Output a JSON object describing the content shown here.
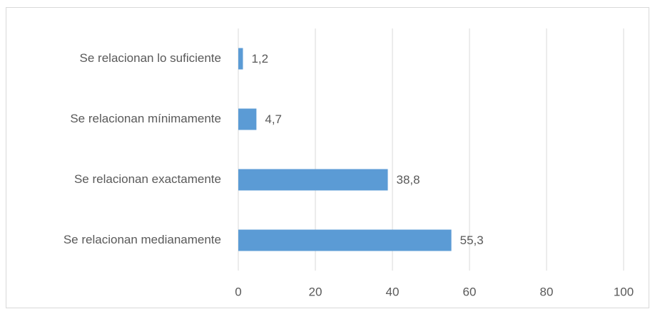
{
  "chart_data": {
    "type": "bar",
    "orientation": "horizontal",
    "categories": [
      "Se relacionan lo suficiente",
      "Se relacionan mínimamente",
      "Se relacionan exactamente",
      "Se relacionan medianamente"
    ],
    "values": [
      1.2,
      4.7,
      38.8,
      55.3
    ],
    "value_labels": [
      "1,2",
      "4,7",
      "38,8",
      "55,3"
    ],
    "color": "#5b9bd5",
    "xlim": [
      0,
      100
    ],
    "xticks": [
      0,
      20,
      40,
      60,
      80,
      100
    ],
    "grid": true
  }
}
